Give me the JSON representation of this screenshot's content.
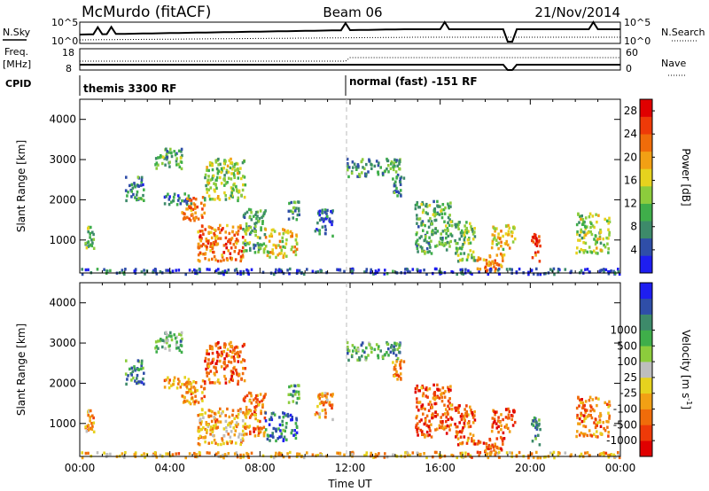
{
  "header": {
    "station": "McMurdo (fitACF)",
    "beam": "Beam 06",
    "date": "21/Nov/2014"
  },
  "top_panels": {
    "left_label_nsky": "N.Sky",
    "right_label_nsearch": "N.Search",
    "noise_ticks": [
      "10^5",
      "10^0"
    ],
    "left_label_freq": "Freq.",
    "freq_unit": "[MHz]",
    "freq_ticks": [
      "18",
      "8"
    ],
    "right_label_nave": "Nave",
    "nave_ticks": [
      "60",
      "0"
    ],
    "cpid_label": "CPID",
    "cpid_segments": [
      {
        "label": "themis 3300 RF",
        "start_hour": 0
      },
      {
        "label": "normal (fast) -151 RF",
        "start_hour": 12
      }
    ]
  },
  "chart_data": [
    {
      "type": "heatmap",
      "name": "power",
      "title": "",
      "xlabel": "Time UT",
      "ylabel": "Slant Range [km]",
      "xlim": [
        0,
        24
      ],
      "ylim": [
        180,
        4500
      ],
      "x_ticks": [
        "00:00",
        "04:00",
        "08:00",
        "12:00",
        "16:00",
        "20:00",
        "00:00"
      ],
      "y_ticks": [
        "1000",
        "2000",
        "3000",
        "4000"
      ],
      "colorbar": {
        "label": "Power [dB]",
        "ticks": [
          "4",
          "8",
          "12",
          "16",
          "20",
          "24",
          "28"
        ],
        "colors": [
          "#1e1ef0",
          "#2f4ea8",
          "#3d8a6a",
          "#3fae4a",
          "#8ccc3c",
          "#e6d21e",
          "#f2a014",
          "#f06c0a",
          "#ee3a08",
          "#e00000"
        ],
        "range": [
          0,
          30
        ]
      },
      "patches": [
        {
          "t": [
            0.2,
            0.6
          ],
          "r": [
            800,
            1400
          ],
          "level": 0.35
        },
        {
          "t": [
            2.0,
            2.8
          ],
          "r": [
            2000,
            2600
          ],
          "level": 0.25
        },
        {
          "t": [
            3.3,
            4.5
          ],
          "r": [
            2800,
            3300
          ],
          "level": 0.35
        },
        {
          "t": [
            3.7,
            4.9
          ],
          "r": [
            1900,
            2200
          ],
          "level": 0.2
        },
        {
          "t": [
            4.5,
            5.5
          ],
          "r": [
            1500,
            2100
          ],
          "level": 0.7
        },
        {
          "t": [
            5.2,
            7.2
          ],
          "r": [
            500,
            1400
          ],
          "level": 0.75
        },
        {
          "t": [
            5.5,
            7.3
          ],
          "r": [
            2000,
            3050
          ],
          "level": 0.45
        },
        {
          "t": [
            7.2,
            8.2
          ],
          "r": [
            700,
            1800
          ],
          "level": 0.35
        },
        {
          "t": [
            8.2,
            9.6
          ],
          "r": [
            600,
            1300
          ],
          "level": 0.55
        },
        {
          "t": [
            9.2,
            9.7
          ],
          "r": [
            1500,
            2000
          ],
          "level": 0.3
        },
        {
          "t": [
            10.4,
            11.2
          ],
          "r": [
            1100,
            1800
          ],
          "level": 0.2
        },
        {
          "t": [
            11.8,
            14.2
          ],
          "r": [
            2600,
            3050
          ],
          "level": 0.3
        },
        {
          "t": [
            13.8,
            14.4
          ],
          "r": [
            2100,
            2600
          ],
          "level": 0.25
        },
        {
          "t": [
            14.8,
            16.5
          ],
          "r": [
            700,
            2000
          ],
          "level": 0.35
        },
        {
          "t": [
            16.6,
            17.5
          ],
          "r": [
            500,
            1500
          ],
          "level": 0.4
        },
        {
          "t": [
            17.6,
            18.8
          ],
          "r": [
            250,
            700
          ],
          "level": 0.7
        },
        {
          "t": [
            18.2,
            19.3
          ],
          "r": [
            800,
            1400
          ],
          "level": 0.55
        },
        {
          "t": [
            20.0,
            20.4
          ],
          "r": [
            500,
            1200
          ],
          "level": 0.85
        },
        {
          "t": [
            22.0,
            23.5
          ],
          "r": [
            700,
            1700
          ],
          "level": 0.45
        },
        {
          "t": [
            0.0,
            24.0
          ],
          "r": [
            180,
            320
          ],
          "level": 0.15
        }
      ]
    },
    {
      "type": "heatmap",
      "name": "velocity",
      "title": "",
      "xlabel": "Time UT",
      "ylabel": "Slant Range [km]",
      "xlim": [
        0,
        24
      ],
      "ylim": [
        180,
        4500
      ],
      "x_ticks": [
        "00:00",
        "04:00",
        "08:00",
        "12:00",
        "16:00",
        "20:00",
        "00:00"
      ],
      "y_ticks": [
        "1000",
        "2000",
        "3000",
        "4000"
      ],
      "colorbar": {
        "label": "Velocity [m s",
        "label_sup": "-1",
        "label_end": "]",
        "ticks": [
          "-1000",
          "-500",
          "-100",
          "-25",
          "25",
          "100",
          "500",
          "1000"
        ],
        "colors": [
          "#e00000",
          "#ee3a08",
          "#f06c0a",
          "#f2a014",
          "#e6d21e",
          "#bebebe",
          "#8ccc3c",
          "#3fae4a",
          "#3d8a6a",
          "#2f4ea8",
          "#1e1ef0"
        ]
      },
      "patches": [
        {
          "t": [
            0.2,
            0.6
          ],
          "r": [
            800,
            1400
          ],
          "level": 0.3
        },
        {
          "t": [
            2.0,
            2.8
          ],
          "r": [
            2000,
            2600
          ],
          "level": 0.75
        },
        {
          "t": [
            3.3,
            4.5
          ],
          "r": [
            2800,
            3300
          ],
          "level": 0.65
        },
        {
          "t": [
            3.7,
            4.9
          ],
          "r": [
            1900,
            2200
          ],
          "level": 0.3
        },
        {
          "t": [
            4.5,
            5.5
          ],
          "r": [
            1500,
            2100
          ],
          "level": 0.25
        },
        {
          "t": [
            5.2,
            7.2
          ],
          "r": [
            500,
            1400
          ],
          "level": 0.35
        },
        {
          "t": [
            5.5,
            7.3
          ],
          "r": [
            2000,
            3050
          ],
          "level": 0.2
        },
        {
          "t": [
            7.2,
            8.2
          ],
          "r": [
            700,
            1800
          ],
          "level": 0.25
        },
        {
          "t": [
            8.2,
            9.6
          ],
          "r": [
            600,
            1300
          ],
          "level": 0.8
        },
        {
          "t": [
            9.2,
            9.7
          ],
          "r": [
            1500,
            2000
          ],
          "level": 0.7
        },
        {
          "t": [
            10.4,
            11.2
          ],
          "r": [
            1100,
            1800
          ],
          "level": 0.3
        },
        {
          "t": [
            11.8,
            14.2
          ],
          "r": [
            2600,
            3050
          ],
          "level": 0.7
        },
        {
          "t": [
            13.8,
            14.4
          ],
          "r": [
            2100,
            2600
          ],
          "level": 0.25
        },
        {
          "t": [
            14.8,
            16.5
          ],
          "r": [
            700,
            2000
          ],
          "level": 0.2
        },
        {
          "t": [
            16.6,
            17.5
          ],
          "r": [
            500,
            1500
          ],
          "level": 0.2
        },
        {
          "t": [
            17.6,
            18.8
          ],
          "r": [
            250,
            700
          ],
          "level": 0.2
        },
        {
          "t": [
            18.2,
            19.3
          ],
          "r": [
            800,
            1400
          ],
          "level": 0.15
        },
        {
          "t": [
            20.0,
            20.4
          ],
          "r": [
            500,
            1200
          ],
          "level": 0.75
        },
        {
          "t": [
            22.0,
            23.5
          ],
          "r": [
            700,
            1700
          ],
          "level": 0.25
        },
        {
          "t": [
            0.0,
            24.0
          ],
          "r": [
            180,
            320
          ],
          "level": 0.35
        }
      ]
    }
  ]
}
